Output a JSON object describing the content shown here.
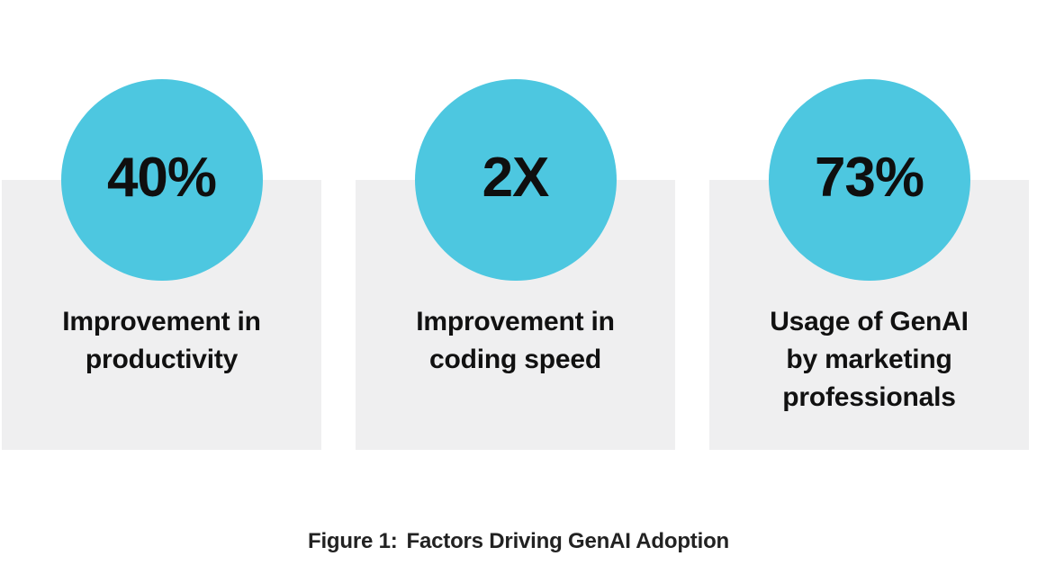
{
  "colors": {
    "circle_fill": "#4DC7E0",
    "card_background": "#EFEFF0",
    "stat_text": "#0f0f0f",
    "label_text": "#111111",
    "caption_text": "#222222",
    "page_background": "#ffffff"
  },
  "chart_data": {
    "type": "table",
    "title": "Figure 1: Factors Driving GenAI Adoption",
    "legend_position": "none",
    "items": [
      {
        "value": "40%",
        "label": "Improvement in productivity",
        "label_lines": [
          "Improvement in",
          "productivity"
        ]
      },
      {
        "value": "2X",
        "label": "Improvement in coding speed",
        "label_lines": [
          "Improvement in",
          "coding speed"
        ]
      },
      {
        "value": "73%",
        "label": "Usage of GenAI by marketing professionals",
        "label_lines": [
          "Usage of GenAI",
          "by marketing",
          "professionals"
        ]
      }
    ]
  },
  "caption": {
    "figure_label": "Figure 1:",
    "title": "Factors Driving GenAI Adoption"
  }
}
